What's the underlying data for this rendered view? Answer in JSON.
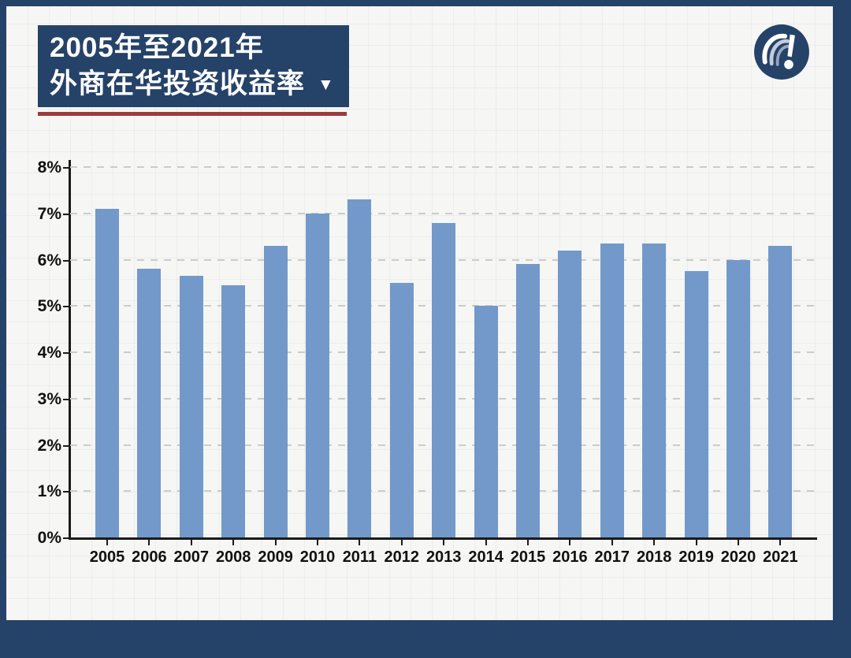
{
  "header": {
    "title_line1": "2005年至2021年",
    "title_line2": "外商在华投资收益率",
    "dropdown_icon": "▼"
  },
  "logo": {
    "name": "the-paper-news-logo"
  },
  "colors": {
    "frame_navy": "#254269",
    "title_underline_red": "#9c3a3c",
    "bar_blue": "#7299c9",
    "background": "#f6f6f4",
    "gridline": "#cbcbcb",
    "axis": "#1a1a1a",
    "label_text": "#111111"
  },
  "chart_data": {
    "type": "bar",
    "title": "2005年至2021年外商在华投资收益率",
    "categories": [
      "2005",
      "2006",
      "2007",
      "2008",
      "2009",
      "2010",
      "2011",
      "2012",
      "2013",
      "2014",
      "2015",
      "2016",
      "2017",
      "2018",
      "2019",
      "2020",
      "2021"
    ],
    "values": [
      7.1,
      5.8,
      5.65,
      5.45,
      6.3,
      7.0,
      7.3,
      5.5,
      6.8,
      5.0,
      5.9,
      6.2,
      6.35,
      6.35,
      5.75,
      6.0,
      6.3
    ],
    "unit": "%",
    "xlabel": "",
    "ylabel": "",
    "ylim": [
      0,
      8
    ],
    "yticks": [
      0,
      1,
      2,
      3,
      4,
      5,
      6,
      7,
      8
    ],
    "ytick_labels": [
      "0%",
      "1%",
      "2%",
      "3%",
      "4%",
      "5%",
      "6%",
      "7%",
      "8%"
    ],
    "grid": "dashed-horizontal",
    "legend": "none"
  }
}
